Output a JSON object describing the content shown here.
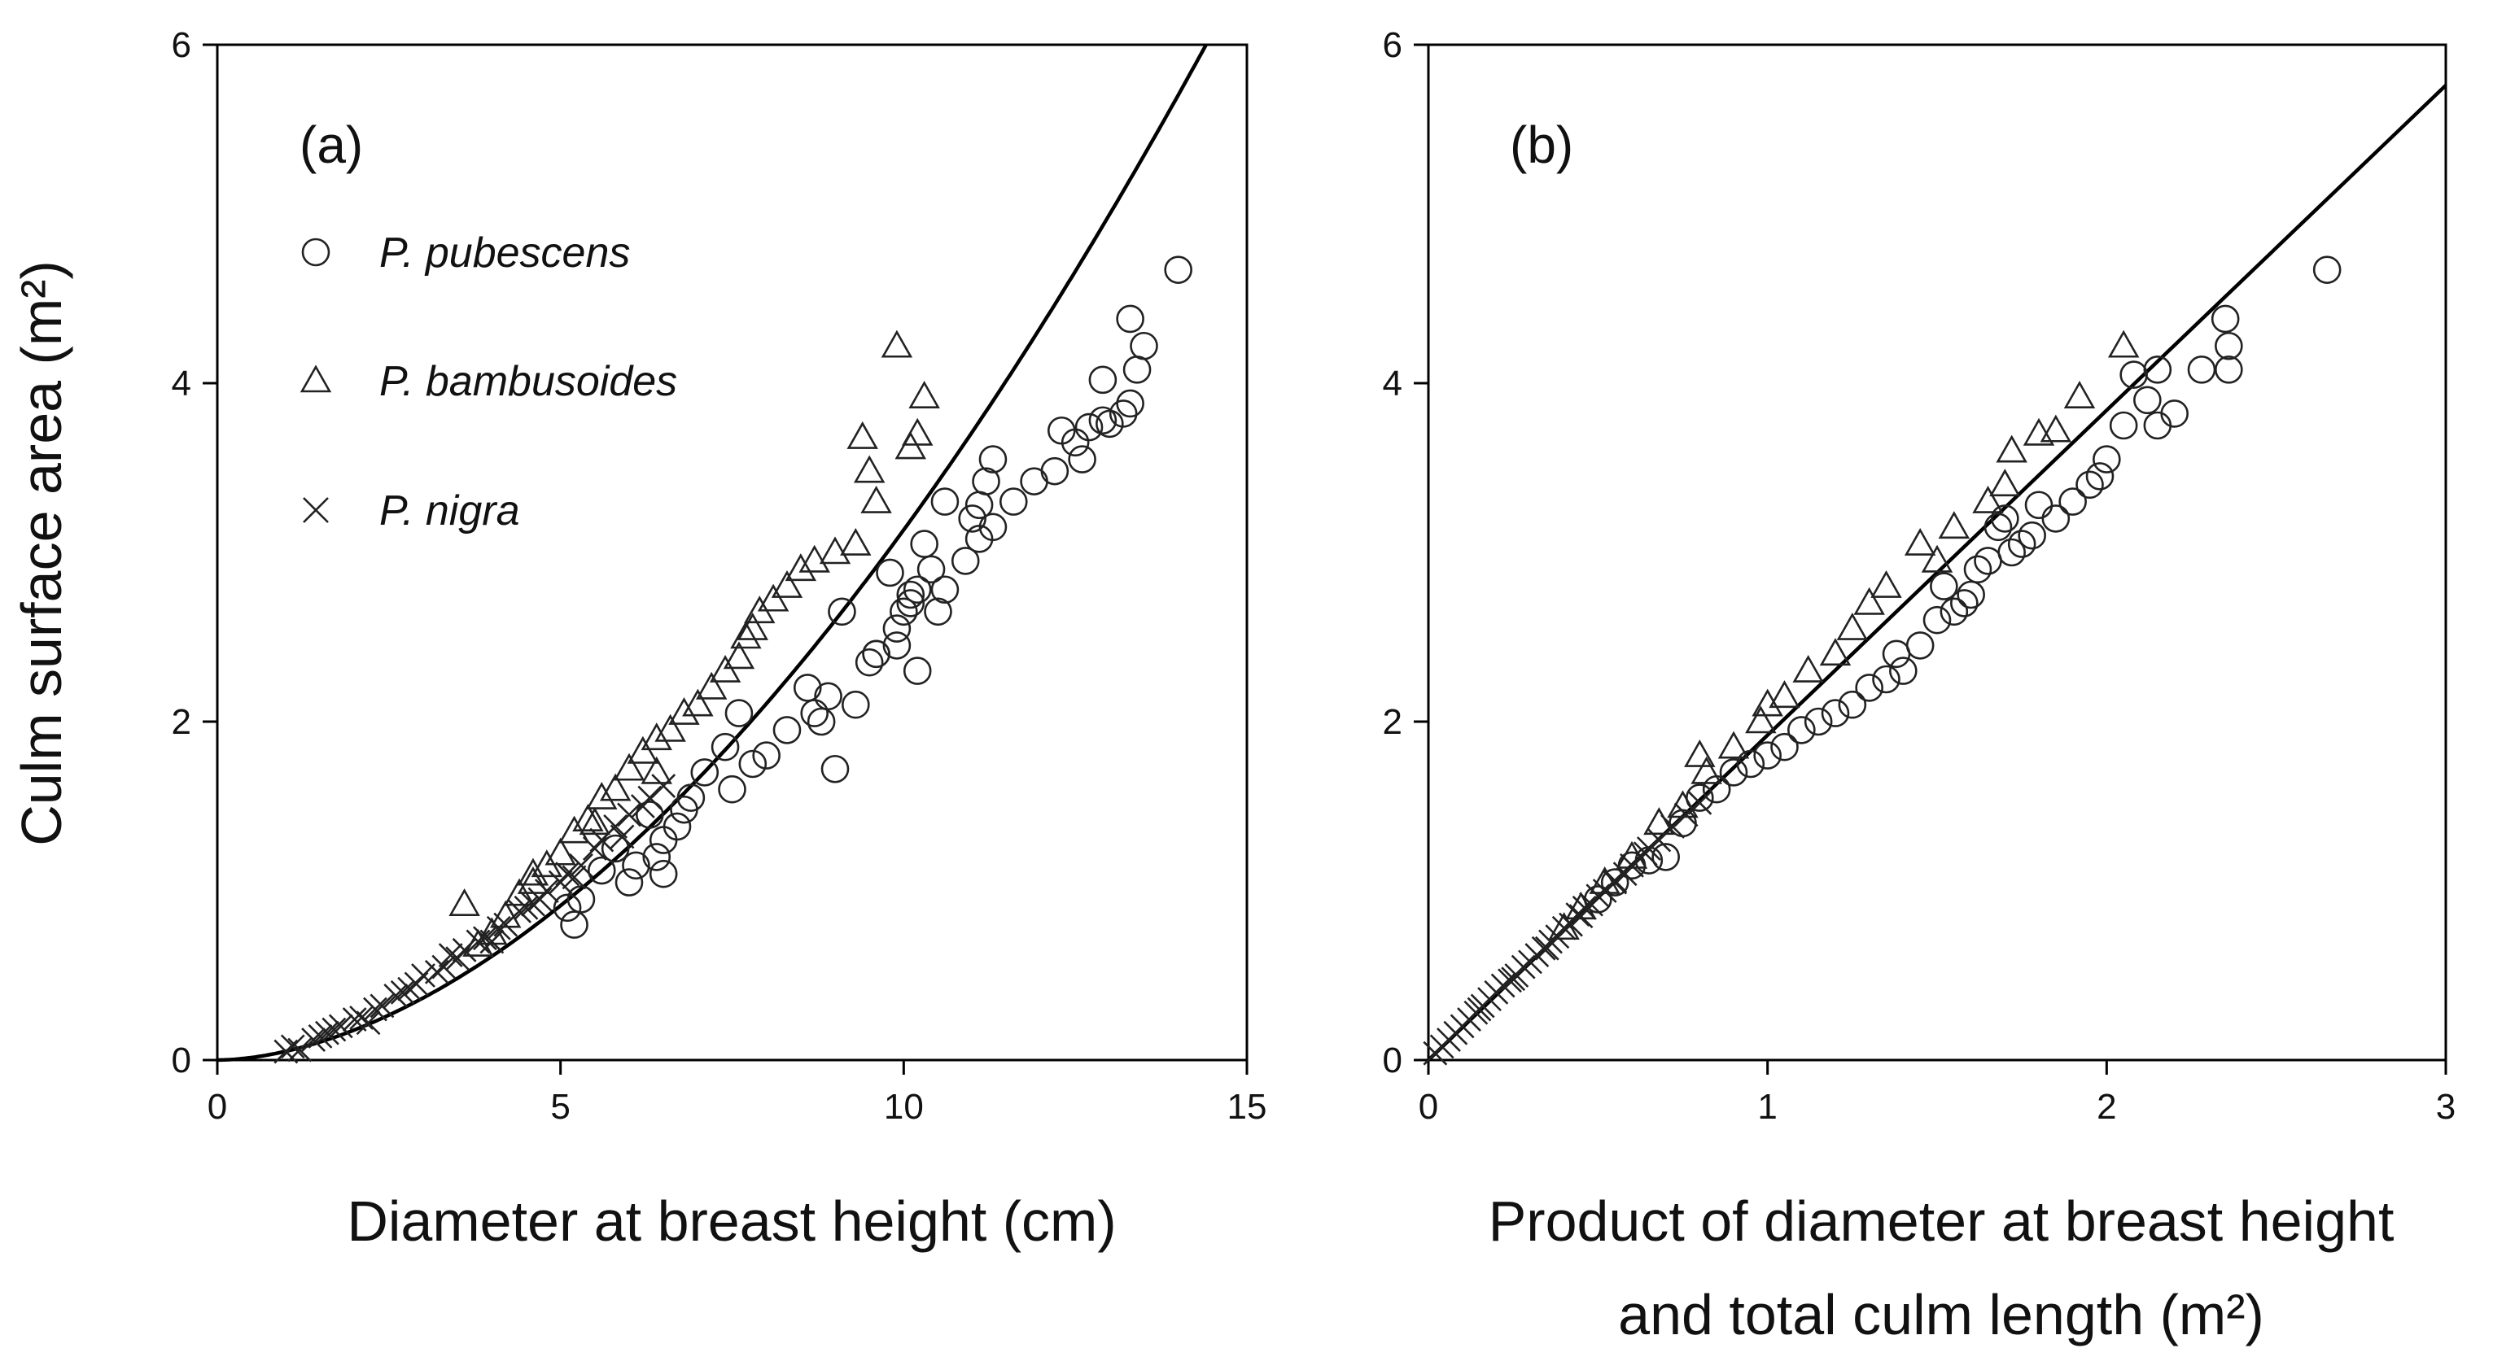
{
  "chart_data": [
    {
      "type": "scatter",
      "panel_label": "(a)",
      "xlabel": "Diameter at breast height (cm)",
      "ylabel": "Culm surface area (m²)",
      "xlim": [
        0,
        15
      ],
      "ylim": [
        0,
        6
      ],
      "xticks": [
        0,
        5,
        10,
        15
      ],
      "yticks": [
        0,
        2,
        4,
        6
      ],
      "legend": [
        {
          "marker": "circle",
          "label": "P. pubescens"
        },
        {
          "marker": "triangle",
          "label": "P. bambusoides"
        },
        {
          "marker": "cross",
          "label": "P. nigra"
        }
      ],
      "fit_curve": {
        "a": 0.052,
        "b": 1.78
      },
      "series": [
        {
          "name": "P. pubescens",
          "marker": "circle",
          "x": [
            14.0,
            13.3,
            13.5,
            13.4,
            13.3,
            12.9,
            13.2,
            13.0,
            12.7,
            12.6,
            12.5,
            12.3,
            12.2,
            11.9,
            11.6,
            11.3,
            11.2,
            11.1,
            11.0,
            11.1,
            10.9,
            11.3,
            10.6,
            10.5,
            10.4,
            10.2,
            10.1,
            10.3,
            10.2,
            10.6,
            9.9,
            10.0,
            9.8,
            9.6,
            9.5,
            9.9,
            10.1,
            9.3,
            9.1,
            8.8,
            8.6,
            8.7,
            8.9,
            8.3,
            8.0,
            7.8,
            7.5,
            7.4,
            7.1,
            6.9,
            6.8,
            6.7,
            6.5,
            6.4,
            6.3,
            6.1,
            6.0,
            5.8,
            5.6,
            5.3,
            5.1,
            5.2,
            9.0,
            7.6,
            6.5,
            9.6,
            12.9
          ],
          "y": [
            4.67,
            4.38,
            4.22,
            4.08,
            3.88,
            3.78,
            3.82,
            3.76,
            3.74,
            3.55,
            3.65,
            3.72,
            3.48,
            3.42,
            3.3,
            3.55,
            3.42,
            3.28,
            3.2,
            3.08,
            2.95,
            3.15,
            2.78,
            2.65,
            2.9,
            2.78,
            2.7,
            3.05,
            2.3,
            3.3,
            2.45,
            2.65,
            2.88,
            2.4,
            2.35,
            2.55,
            2.75,
            2.1,
            2.65,
            2.0,
            2.2,
            2.05,
            2.15,
            1.95,
            1.8,
            1.75,
            1.6,
            1.85,
            1.7,
            1.55,
            1.48,
            1.38,
            1.3,
            1.2,
            1.45,
            1.15,
            1.05,
            1.25,
            1.12,
            0.95,
            0.9,
            0.8,
            1.72,
            2.05,
            1.1,
            2.4,
            4.02
          ]
        },
        {
          "name": "P. bambusoides",
          "marker": "triangle",
          "x": [
            9.9,
            10.3,
            10.2,
            10.1,
            9.4,
            9.5,
            9.6,
            9.3,
            9.0,
            8.7,
            8.3,
            8.1,
            7.9,
            7.7,
            7.6,
            7.4,
            7.2,
            7.0,
            6.8,
            6.6,
            6.4,
            6.2,
            6.0,
            5.8,
            5.6,
            5.4,
            5.2,
            5.0,
            4.8,
            4.6,
            4.4,
            4.2,
            4.0,
            3.8,
            3.6,
            7.8,
            8.5,
            6.4,
            5.5,
            4.6
          ],
          "y": [
            4.22,
            3.92,
            3.7,
            3.62,
            3.68,
            3.48,
            3.3,
            3.05,
            3.0,
            2.95,
            2.8,
            2.72,
            2.65,
            2.5,
            2.38,
            2.3,
            2.2,
            2.1,
            2.05,
            1.95,
            1.9,
            1.82,
            1.72,
            1.6,
            1.55,
            1.42,
            1.35,
            1.22,
            1.15,
            1.05,
            0.98,
            0.85,
            0.75,
            0.68,
            0.92,
            2.55,
            2.9,
            1.7,
            1.4,
            1.1
          ]
        },
        {
          "name": "P. nigra",
          "marker": "cross",
          "x": [
            1.0,
            1.1,
            1.2,
            1.4,
            1.5,
            1.7,
            1.8,
            2.0,
            2.1,
            2.3,
            2.4,
            2.6,
            2.7,
            2.9,
            3.0,
            3.2,
            3.3,
            3.5,
            3.6,
            3.8,
            3.9,
            4.1,
            4.2,
            4.4,
            4.5,
            4.7,
            4.8,
            5.0,
            5.1,
            5.3,
            5.5,
            5.6,
            5.8,
            6.0,
            6.2,
            6.3,
            6.5,
            1.6,
            2.2,
            2.8,
            3.4,
            4.0,
            4.6,
            5.2,
            5.9
          ],
          "y": [
            0.05,
            0.08,
            0.06,
            0.12,
            0.14,
            0.18,
            0.2,
            0.24,
            0.25,
            0.3,
            0.32,
            0.38,
            0.4,
            0.45,
            0.5,
            0.52,
            0.55,
            0.6,
            0.65,
            0.7,
            0.72,
            0.78,
            0.8,
            0.88,
            0.9,
            0.95,
            1.0,
            1.05,
            1.1,
            1.15,
            1.25,
            1.3,
            1.38,
            1.45,
            1.5,
            1.55,
            1.62,
            0.16,
            0.22,
            0.42,
            0.62,
            0.7,
            0.92,
            1.08,
            1.32
          ]
        }
      ]
    },
    {
      "type": "scatter",
      "panel_label": "(b)",
      "xlabel_line1": "Product of diameter at breast height",
      "xlabel_line2": "and total culm length (m²)",
      "xlim": [
        0,
        3
      ],
      "ylim": [
        0,
        6
      ],
      "xticks": [
        0,
        1,
        2,
        3
      ],
      "yticks": [
        0,
        2,
        4,
        6
      ],
      "fit_line": {
        "slope": 1.92,
        "intercept": 0
      },
      "series": [
        {
          "name": "P. pubescens",
          "marker": "circle",
          "x": [
            2.65,
            2.35,
            2.36,
            2.36,
            2.2,
            2.15,
            2.15,
            2.12,
            2.08,
            2.05,
            2.0,
            1.98,
            1.95,
            1.9,
            1.85,
            1.8,
            1.78,
            1.75,
            1.72,
            1.7,
            1.68,
            1.65,
            1.6,
            1.58,
            1.55,
            1.52,
            1.5,
            1.45,
            1.4,
            1.38,
            1.35,
            1.3,
            1.25,
            1.2,
            1.15,
            1.1,
            1.05,
            1.0,
            0.95,
            0.9,
            0.85,
            0.8,
            0.75,
            0.7,
            0.65,
            0.6,
            0.55,
            0.5,
            2.28,
            1.62
          ],
          "y": [
            4.67,
            4.38,
            4.22,
            4.08,
            3.82,
            4.08,
            3.75,
            3.9,
            4.05,
            3.75,
            3.55,
            3.45,
            3.4,
            3.3,
            3.2,
            3.28,
            3.1,
            3.05,
            3.0,
            3.2,
            3.15,
            2.95,
            2.75,
            2.7,
            2.65,
            2.8,
            2.6,
            2.45,
            2.3,
            2.4,
            2.25,
            2.2,
            2.1,
            2.05,
            2.0,
            1.95,
            1.85,
            1.8,
            1.75,
            1.7,
            1.6,
            1.55,
            1.4,
            1.2,
            1.18,
            1.15,
            1.05,
            0.95,
            4.08,
            2.9
          ]
        },
        {
          "name": "P. bambusoides",
          "marker": "triangle",
          "x": [
            2.05,
            1.92,
            1.85,
            1.8,
            1.72,
            1.65,
            1.55,
            1.45,
            1.35,
            1.3,
            1.25,
            1.2,
            1.12,
            1.05,
            0.98,
            0.9,
            0.82,
            0.75,
            0.68,
            0.6,
            0.52,
            0.45,
            0.4,
            1.7,
            1.5,
            1.0,
            0.8
          ],
          "y": [
            4.22,
            3.92,
            3.72,
            3.7,
            3.6,
            3.3,
            3.15,
            3.05,
            2.8,
            2.7,
            2.55,
            2.4,
            2.3,
            2.15,
            2.0,
            1.85,
            1.7,
            1.5,
            1.4,
            1.2,
            1.05,
            0.9,
            0.78,
            3.4,
            2.95,
            2.1,
            1.8
          ]
        },
        {
          "name": "P. nigra",
          "marker": "cross",
          "x": [
            0.02,
            0.04,
            0.06,
            0.08,
            0.1,
            0.12,
            0.14,
            0.16,
            0.18,
            0.2,
            0.22,
            0.24,
            0.26,
            0.28,
            0.3,
            0.32,
            0.34,
            0.36,
            0.38,
            0.4,
            0.42,
            0.44,
            0.46,
            0.48,
            0.5,
            0.52,
            0.55,
            0.58,
            0.6,
            0.64,
            0.68,
            0.72,
            0.76,
            0.8,
            0.15,
            0.25,
            0.35,
            0.45,
            0.55,
            0.65
          ],
          "y": [
            0.04,
            0.08,
            0.12,
            0.16,
            0.2,
            0.24,
            0.28,
            0.32,
            0.36,
            0.4,
            0.44,
            0.47,
            0.5,
            0.55,
            0.58,
            0.62,
            0.66,
            0.7,
            0.73,
            0.78,
            0.8,
            0.86,
            0.9,
            0.92,
            0.97,
            1.0,
            1.05,
            1.1,
            1.15,
            1.22,
            1.3,
            1.38,
            1.45,
            1.52,
            0.3,
            0.48,
            0.66,
            0.85,
            1.06,
            1.25
          ]
        }
      ]
    }
  ]
}
